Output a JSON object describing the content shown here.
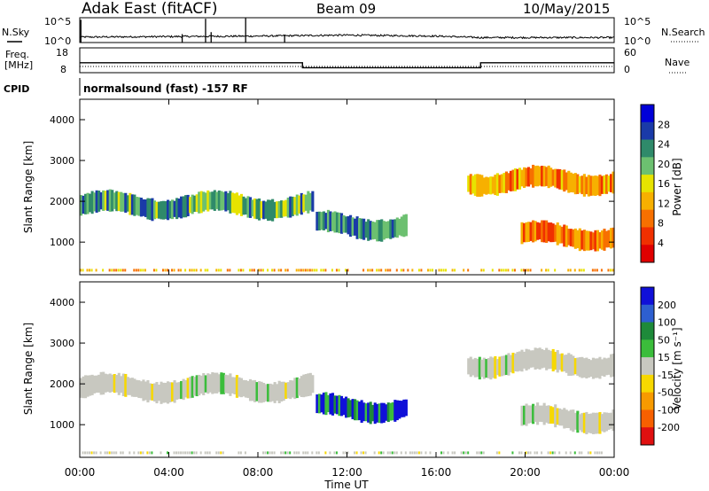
{
  "header": {
    "station": "Adak East (fitACF)",
    "beam": "Beam 09",
    "date": "10/May/2015"
  },
  "noise_panel": {
    "left_label": "N.Sky",
    "left_ticks": [
      "10^5",
      "10^0"
    ],
    "right_label": "N.Search",
    "right_ticks": [
      "10^5",
      "10^0"
    ]
  },
  "freq_panel": {
    "left_label_line1": "Freq.",
    "left_label_line2": "[MHz]",
    "left_ticks": [
      "18",
      "8"
    ],
    "right_label": "Nave",
    "right_ticks": [
      "60",
      "0"
    ]
  },
  "cpid_panel": {
    "label": "CPID",
    "program": "normalsound (fast) -157 RF"
  },
  "power_panel": {
    "ylabel": "Slant Range [km]",
    "yticks": [
      "4000",
      "3000",
      "2000",
      "1000"
    ],
    "cbar_label": "Power [dB]",
    "cbar_ticks": [
      "28",
      "24",
      "20",
      "16",
      "12",
      "8",
      "4"
    ],
    "cbar_colors": [
      "#0000d8",
      "#1a3aa8",
      "#2f8a6a",
      "#6cc070",
      "#e7e300",
      "#f7b000",
      "#f77000",
      "#f03000",
      "#e00000"
    ]
  },
  "velocity_panel": {
    "ylabel": "Slant Range [km]",
    "yticks": [
      "4000",
      "3000",
      "2000",
      "1000"
    ],
    "cbar_label": "Velocity [m s⁻¹]",
    "cbar_ticks": [
      "200",
      "100",
      "50",
      "15",
      "-15",
      "-50",
      "-100",
      "-200"
    ],
    "cbar_colors": [
      "#1010d8",
      "#2e5fd0",
      "#1e8a3a",
      "#3bbd3b",
      "#c8c8c0",
      "#f7d800",
      "#f79a00",
      "#f76000",
      "#e01010"
    ]
  },
  "x_axis": {
    "label": "Time UT",
    "ticks": [
      "00:00",
      "04:00",
      "08:00",
      "12:00",
      "16:00",
      "20:00",
      "00:00"
    ]
  },
  "chart_data": [
    {
      "type": "line",
      "title": "N.Sky / N.Search",
      "x": [
        "00:00",
        "04:00",
        "08:00",
        "12:00",
        "16:00",
        "18:00",
        "20:00",
        "24:00"
      ],
      "series": [
        {
          "values": [
            1.1,
            1.2,
            1.3,
            1.5,
            1.3,
            1.0,
            1.0,
            1.0
          ]
        }
      ],
      "yscale": "log",
      "ylim": [
        "10^0",
        "10^5"
      ]
    },
    {
      "type": "line",
      "title": "Freq. [MHz] / Nave",
      "x": [
        "00:00",
        "10:00",
        "10:00",
        "18:00",
        "18:00",
        "24:00"
      ],
      "series": [
        {
          "values": [
            12,
            12,
            10,
            10,
            12,
            12
          ]
        }
      ],
      "ylim": [
        8,
        18
      ]
    },
    {
      "type": "heatmap",
      "title": "Power [dB]",
      "xlabel": "Time UT",
      "ylabel": "Slant Range [km]",
      "xlim": [
        "00:00",
        "00:00"
      ],
      "ylim": [
        200,
        4500
      ],
      "clim": [
        0,
        32
      ],
      "features": [
        {
          "t_start": 0.0,
          "t_end": 10.4,
          "range_km": 1900,
          "power_db": 22
        },
        {
          "t_start": 10.6,
          "t_end": 14.6,
          "range_km": 1400,
          "power_db": 24
        },
        {
          "t_start": 17.4,
          "t_end": 24.0,
          "range_km": 2500,
          "power_db": 10
        },
        {
          "t_start": 19.8,
          "t_end": 24.0,
          "range_km": 1150,
          "power_db": 8
        }
      ]
    },
    {
      "type": "heatmap",
      "title": "Velocity [m s⁻¹]",
      "xlabel": "Time UT",
      "ylabel": "Slant Range [km]",
      "xlim": [
        "00:00",
        "00:00"
      ],
      "ylim": [
        200,
        4500
      ],
      "clim": [
        -200,
        200
      ],
      "features": [
        {
          "t_start": 0.0,
          "t_end": 10.4,
          "range_km": 1900,
          "velocity": 0
        },
        {
          "t_start": 10.6,
          "t_end": 14.6,
          "range_km": 1400,
          "velocity": 150
        },
        {
          "t_start": 17.4,
          "t_end": 24.0,
          "range_km": 2500,
          "velocity": 0
        },
        {
          "t_start": 19.8,
          "t_end": 24.0,
          "range_km": 1150,
          "velocity": 0
        }
      ]
    }
  ]
}
